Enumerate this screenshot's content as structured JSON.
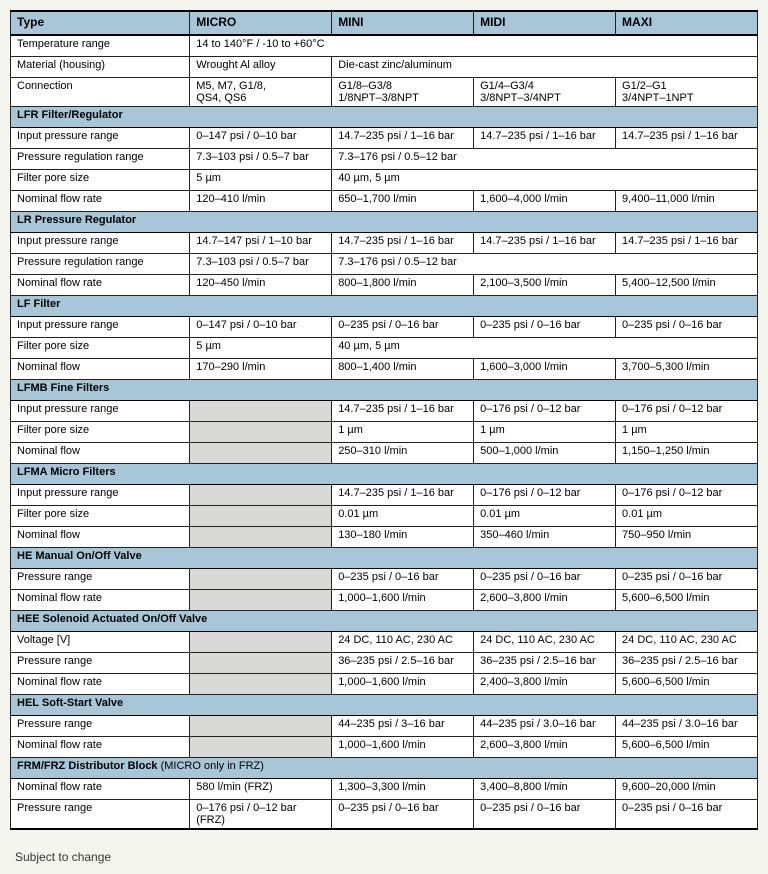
{
  "columns": [
    "Type",
    "MICRO",
    "MINI",
    "MIDI",
    "MAXI"
  ],
  "col_widths": [
    "24%",
    "19%",
    "19%",
    "19%",
    "19%"
  ],
  "footer": "Subject to change",
  "colors": {
    "header_bg": "#a7c7d9",
    "na_bg": "#d9d9d7",
    "border": "#222"
  },
  "sections": [
    {
      "title": null,
      "rows": [
        {
          "label": "Temperature range",
          "cells": [
            {
              "text": "14 to 140°F / -10 to +60°C",
              "span": 4
            }
          ]
        },
        {
          "label": "Material (housing)",
          "cells": [
            {
              "text": "Wrought Al alloy"
            },
            {
              "text": "Die-cast zinc/aluminum",
              "span": 3
            }
          ]
        },
        {
          "label": "Connection",
          "cells": [
            {
              "text": "M5, M7, G1/8,\nQS4, QS6"
            },
            {
              "text": "G1/8–G3/8\n1/8NPT–3/8NPT"
            },
            {
              "text": "G1/4–G3/4\n3/8NPT–3/4NPT"
            },
            {
              "text": "G1/2–G1\n3/4NPT–1NPT"
            }
          ]
        }
      ]
    },
    {
      "title": "LFR Filter/Regulator",
      "rows": [
        {
          "label": "Input pressure range",
          "cells": [
            {
              "text": "0–147 psi / 0–10 bar"
            },
            {
              "text": "14.7–235 psi / 1–16 bar"
            },
            {
              "text": "14.7–235 psi / 1–16 bar"
            },
            {
              "text": "14.7–235 psi / 1–16 bar"
            }
          ]
        },
        {
          "label": "Pressure regulation range",
          "cells": [
            {
              "text": "7.3–103 psi / 0.5–7 bar"
            },
            {
              "text": "7.3–176 psi / 0.5–12 bar",
              "span": 3
            }
          ]
        },
        {
          "label": "Filter pore size",
          "cells": [
            {
              "text": "5 µm"
            },
            {
              "text": "40 µm,  5 µm",
              "span": 3
            }
          ]
        },
        {
          "label": "Nominal flow rate",
          "cells": [
            {
              "text": "120–410 l/min"
            },
            {
              "text": "650–1,700 l/min"
            },
            {
              "text": "1,600–4,000 l/min"
            },
            {
              "text": "9,400–11,000 l/min"
            }
          ]
        }
      ]
    },
    {
      "title": "LR Pressure Regulator",
      "rows": [
        {
          "label": "Input pressure range",
          "cells": [
            {
              "text": "14.7–147 psi / 1–10 bar"
            },
            {
              "text": "14.7–235 psi / 1–16 bar"
            },
            {
              "text": "14.7–235 psi / 1–16 bar"
            },
            {
              "text": "14.7–235 psi / 1–16 bar"
            }
          ]
        },
        {
          "label": "Pressure regulation range",
          "cells": [
            {
              "text": "7.3–103 psi / 0.5–7 bar"
            },
            {
              "text": "7.3–176 psi / 0.5–12 bar",
              "span": 3
            }
          ]
        },
        {
          "label": "Nominal flow rate",
          "cells": [
            {
              "text": "120–450 l/min"
            },
            {
              "text": "800–1,800 l/min"
            },
            {
              "text": "2,100–3,500 l/min"
            },
            {
              "text": "5,400–12,500 l/min"
            }
          ]
        }
      ]
    },
    {
      "title": "LF Filter",
      "rows": [
        {
          "label": "Input pressure range",
          "cells": [
            {
              "text": "0–147 psi / 0–10 bar"
            },
            {
              "text": "0–235 psi / 0–16 bar"
            },
            {
              "text": "0–235 psi / 0–16 bar"
            },
            {
              "text": "0–235 psi / 0–16 bar"
            }
          ]
        },
        {
          "label": "Filter pore size",
          "cells": [
            {
              "text": "5 µm"
            },
            {
              "text": "40 µm, 5 µm",
              "span": 3
            }
          ]
        },
        {
          "label": "Nominal flow",
          "cells": [
            {
              "text": "170–290 l/min"
            },
            {
              "text": "800–1,400 l/min"
            },
            {
              "text": "1,600–3,000 l/min"
            },
            {
              "text": "3,700–5,300 l/min"
            }
          ]
        }
      ]
    },
    {
      "title": "LFMB Fine Filters",
      "rows": [
        {
          "label": "Input pressure range",
          "cells": [
            {
              "na": true
            },
            {
              "text": "14.7–235 psi / 1–16 bar"
            },
            {
              "text": "0–176 psi / 0–12 bar"
            },
            {
              "text": "0–176 psi / 0–12 bar"
            }
          ]
        },
        {
          "label": "Filter pore size",
          "cells": [
            {
              "na": true
            },
            {
              "text": "1 µm"
            },
            {
              "text": "1 µm"
            },
            {
              "text": "1 µm"
            }
          ]
        },
        {
          "label": "Nominal flow",
          "cells": [
            {
              "na": true
            },
            {
              "text": "250–310 l/min"
            },
            {
              "text": "500–1,000 l/min"
            },
            {
              "text": "1,150–1,250 l/min"
            }
          ]
        }
      ]
    },
    {
      "title": "LFMA Micro Filters",
      "rows": [
        {
          "label": "Input pressure range",
          "cells": [
            {
              "na": true
            },
            {
              "text": "14.7–235 psi / 1–16 bar"
            },
            {
              "text": "0–176 psi / 0–12 bar"
            },
            {
              "text": "0–176 psi / 0–12 bar"
            }
          ]
        },
        {
          "label": "Filter pore size",
          "cells": [
            {
              "na": true
            },
            {
              "text": "0.01 µm"
            },
            {
              "text": "0.01 µm"
            },
            {
              "text": "0.01 µm"
            }
          ]
        },
        {
          "label": "Nominal flow",
          "cells": [
            {
              "na": true
            },
            {
              "text": "130–180 l/min"
            },
            {
              "text": "350–460 l/min"
            },
            {
              "text": "750–950 l/min"
            }
          ]
        }
      ]
    },
    {
      "title": "HE Manual On/Off Valve",
      "rows": [
        {
          "label": "Pressure range",
          "cells": [
            {
              "na": true
            },
            {
              "text": "0–235 psi / 0–16 bar"
            },
            {
              "text": "0–235 psi / 0–16 bar"
            },
            {
              "text": "0–235 psi / 0–16 bar"
            }
          ]
        },
        {
          "label": "Nominal flow rate",
          "cells": [
            {
              "na": true
            },
            {
              "text": "1,000–1,600 l/min"
            },
            {
              "text": "2,600–3,800 l/min"
            },
            {
              "text": "5,600–6,500 l/min"
            }
          ]
        }
      ]
    },
    {
      "title": "HEE Solenoid Actuated On/Off Valve",
      "rows": [
        {
          "label": "Voltage [V]",
          "cells": [
            {
              "na": true
            },
            {
              "text": "24 DC, 110 AC, 230 AC"
            },
            {
              "text": "24 DC, 110 AC, 230 AC"
            },
            {
              "text": "24 DC, 110 AC, 230 AC"
            }
          ]
        },
        {
          "label": "Pressure range",
          "cells": [
            {
              "na": true
            },
            {
              "text": "36–235 psi / 2.5–16 bar"
            },
            {
              "text": "36–235 psi / 2.5–16 bar"
            },
            {
              "text": "36–235 psi / 2.5–16 bar"
            }
          ]
        },
        {
          "label": "Nominal flow rate",
          "cells": [
            {
              "na": true
            },
            {
              "text": "1,000–1,600 l/min"
            },
            {
              "text": "2,400–3,800 l/min"
            },
            {
              "text": "5,600–6,500 l/min"
            }
          ]
        }
      ]
    },
    {
      "title": "HEL Soft-Start Valve",
      "rows": [
        {
          "label": "Pressure range",
          "cells": [
            {
              "na": true
            },
            {
              "text": "44–235 psi / 3–16 bar"
            },
            {
              "text": "44–235 psi / 3.0–16 bar"
            },
            {
              "text": "44–235 psi / 3.0–16 bar"
            }
          ]
        },
        {
          "label": "Nominal flow rate",
          "cells": [
            {
              "na": true
            },
            {
              "text": "1,000–1,600 l/min"
            },
            {
              "text": "2,600–3,800 l/min"
            },
            {
              "text": "5,600–6,500 l/min"
            }
          ]
        }
      ]
    },
    {
      "title": "FRM/FRZ Distributor Block",
      "note": "(MICRO only in FRZ)",
      "rows": [
        {
          "label": "Nominal flow rate",
          "cells": [
            {
              "text": "580 l/min (FRZ)"
            },
            {
              "text": "1,300–3,300 l/min"
            },
            {
              "text": "3,400–8,800 l/min"
            },
            {
              "text": "9,600–20,000 l/min"
            }
          ]
        },
        {
          "label": "Pressure range",
          "cells": [
            {
              "text": "0–176 psi / 0–12 bar (FRZ)"
            },
            {
              "text": "0–235 psi / 0–16 bar"
            },
            {
              "text": "0–235 psi / 0–16 bar"
            },
            {
              "text": "0–235 psi / 0–16 bar"
            }
          ]
        }
      ]
    }
  ]
}
